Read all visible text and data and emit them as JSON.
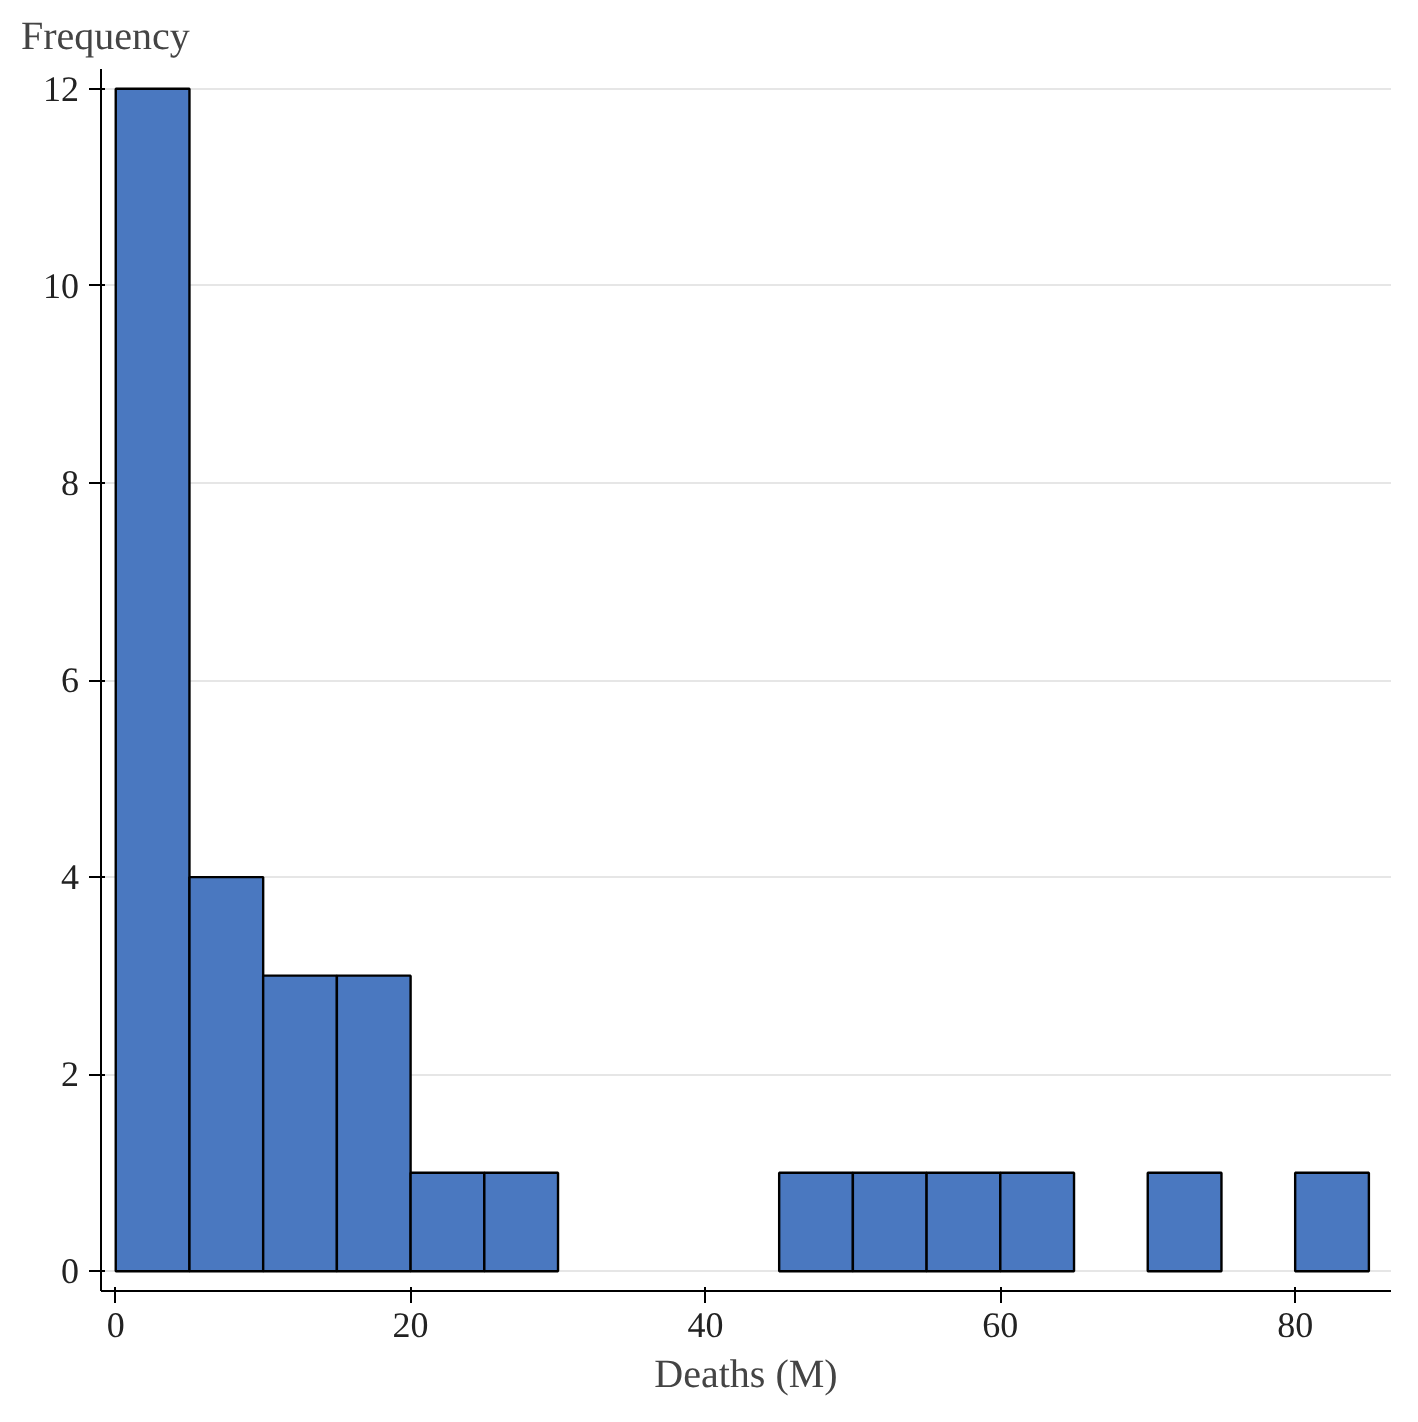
{
  "chart_data": {
    "type": "histogram",
    "xlabel": "Deaths (M)",
    "ylabel": "Frequency",
    "bins": [
      0,
      5,
      10,
      15,
      20,
      25,
      30,
      35,
      40,
      45,
      50,
      55,
      60,
      65,
      70,
      75,
      80,
      85
    ],
    "values": [
      12,
      4,
      3,
      3,
      1,
      1,
      0,
      0,
      0,
      1,
      1,
      1,
      1,
      0,
      1,
      0,
      1
    ],
    "color": "#4a78c0",
    "xlim": [
      -1,
      86.5
    ],
    "ylim": [
      -0.2,
      12.2
    ],
    "xticks": [
      0,
      20,
      40,
      60,
      80
    ],
    "yticks": [
      0,
      2,
      4,
      6,
      8,
      10,
      12
    ],
    "grid": "y"
  }
}
